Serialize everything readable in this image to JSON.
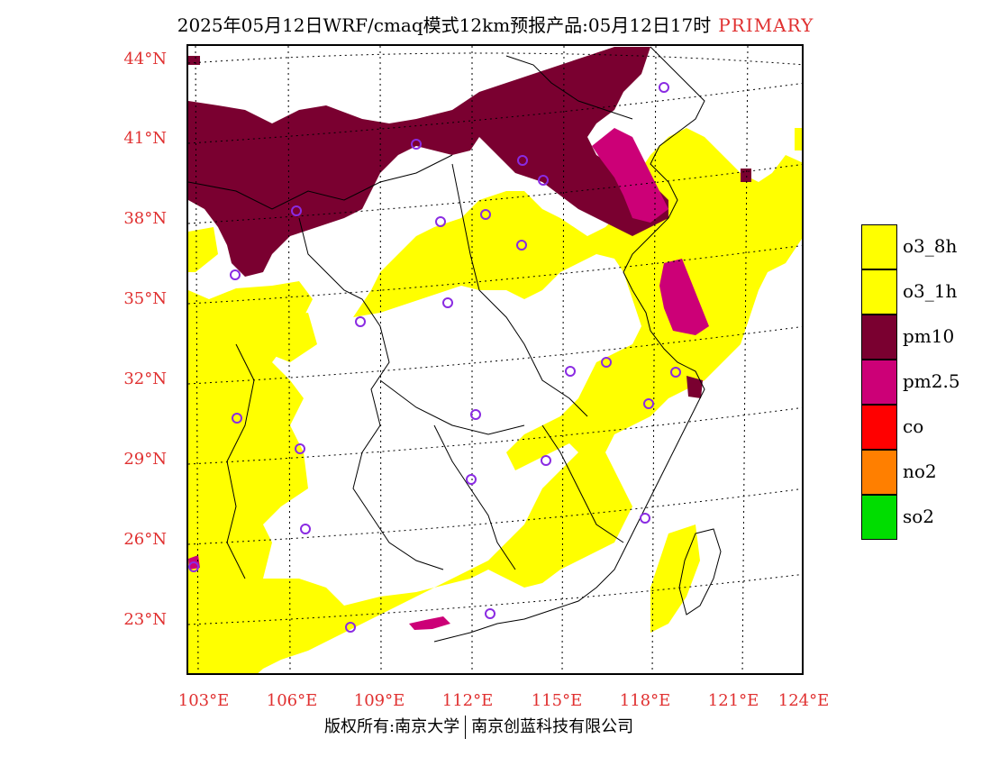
{
  "title": {
    "main": "2025年05月12日WRF/cmaq模式12km预报产品:05月12日17时",
    "tag": "PRIMARY"
  },
  "axes": {
    "lat_labels": [
      "44°N",
      "41°N",
      "38°N",
      "35°N",
      "32°N",
      "29°N",
      "26°N",
      "23°N"
    ],
    "lon_labels": [
      "103°E",
      "106°E",
      "109°E",
      "112°E",
      "115°E",
      "118°E",
      "121°E",
      "124°E"
    ]
  },
  "legend": [
    {
      "label": "o3_8h",
      "color": "#ffff00"
    },
    {
      "label": "o3_1h",
      "color": "#ffff00"
    },
    {
      "label": "pm10",
      "color": "#7a0030"
    },
    {
      "label": "pm2.5",
      "color": "#cc0077"
    },
    {
      "label": "co",
      "color": "#ff0000"
    },
    {
      "label": "no2",
      "color": "#ff7f00"
    },
    {
      "label": "so2",
      "color": "#00dd00"
    }
  ],
  "footer": {
    "left": "版权所有:南京大学",
    "right": "南京创蓝科技有限公司"
  },
  "colors": {
    "o3": "#ffff00",
    "pm10": "#7a0030",
    "pm25": "#cc0077",
    "station": "#8a2be2",
    "label": "#e03030"
  }
}
